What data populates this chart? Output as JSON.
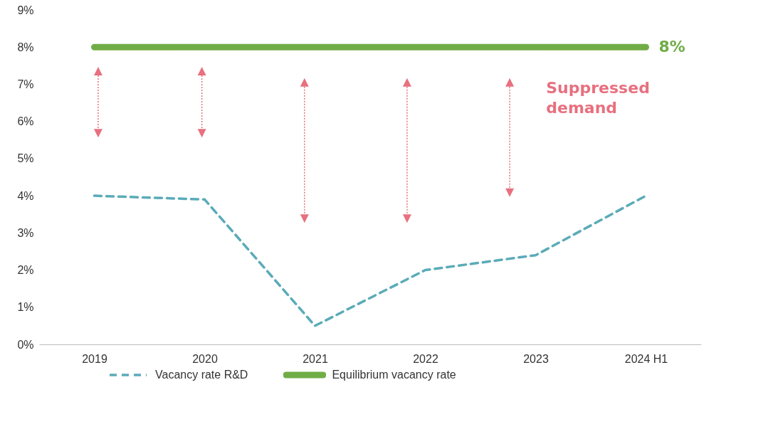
{
  "chart_data": {
    "type": "line",
    "categories": [
      "2019",
      "2020",
      "2021",
      "2022",
      "2023",
      "2024 H1"
    ],
    "ylim": [
      0,
      9
    ],
    "yticks": [
      {
        "value": 0,
        "label": "0%"
      },
      {
        "value": 1,
        "label": "1%"
      },
      {
        "value": 2,
        "label": "2%"
      },
      {
        "value": 3,
        "label": "3%"
      },
      {
        "value": 4,
        "label": "4%"
      },
      {
        "value": 5,
        "label": "5%"
      },
      {
        "value": 6,
        "label": "6%"
      },
      {
        "value": 7,
        "label": "7%"
      },
      {
        "value": 8,
        "label": "8%"
      },
      {
        "value": 9,
        "label": "9%"
      }
    ],
    "legend": "bottom",
    "annotations": [
      "Suppressed demand"
    ],
    "series": [
      {
        "name": "Vacancy rate R&D",
        "color": "#5aabb8",
        "line_style": "dashed",
        "values": [
          4.0,
          3.9,
          0.5,
          2.0,
          2.4,
          4.0
        ]
      },
      {
        "name": "Equilibrium vacancy rate",
        "color": "#70ad47",
        "line_style": "solid",
        "values": [
          8,
          8,
          8,
          8,
          8,
          8
        ],
        "value_labels": [
          null,
          null,
          null,
          null,
          null,
          "8%"
        ]
      }
    ]
  }
}
